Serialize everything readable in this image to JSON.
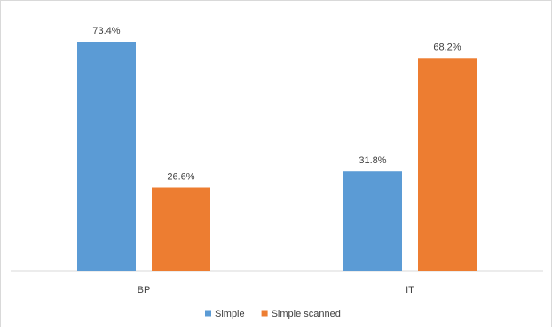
{
  "chart_data": {
    "type": "bar",
    "categories": [
      "BP",
      "IT"
    ],
    "series": [
      {
        "name": "Simple",
        "values": [
          73.4,
          31.8
        ],
        "labels": [
          "73.4%",
          "31.8%"
        ],
        "color": "#5b9bd5"
      },
      {
        "name": "Simple scanned",
        "values": [
          26.6,
          68.2
        ],
        "labels": [
          "26.6%",
          "68.2%"
        ],
        "color": "#ed7d31"
      }
    ],
    "unit": "%",
    "ylim": [
      0,
      73.4
    ],
    "grid": false,
    "legend_position": "bottom",
    "title": "",
    "xlabel": "",
    "ylabel": ""
  }
}
